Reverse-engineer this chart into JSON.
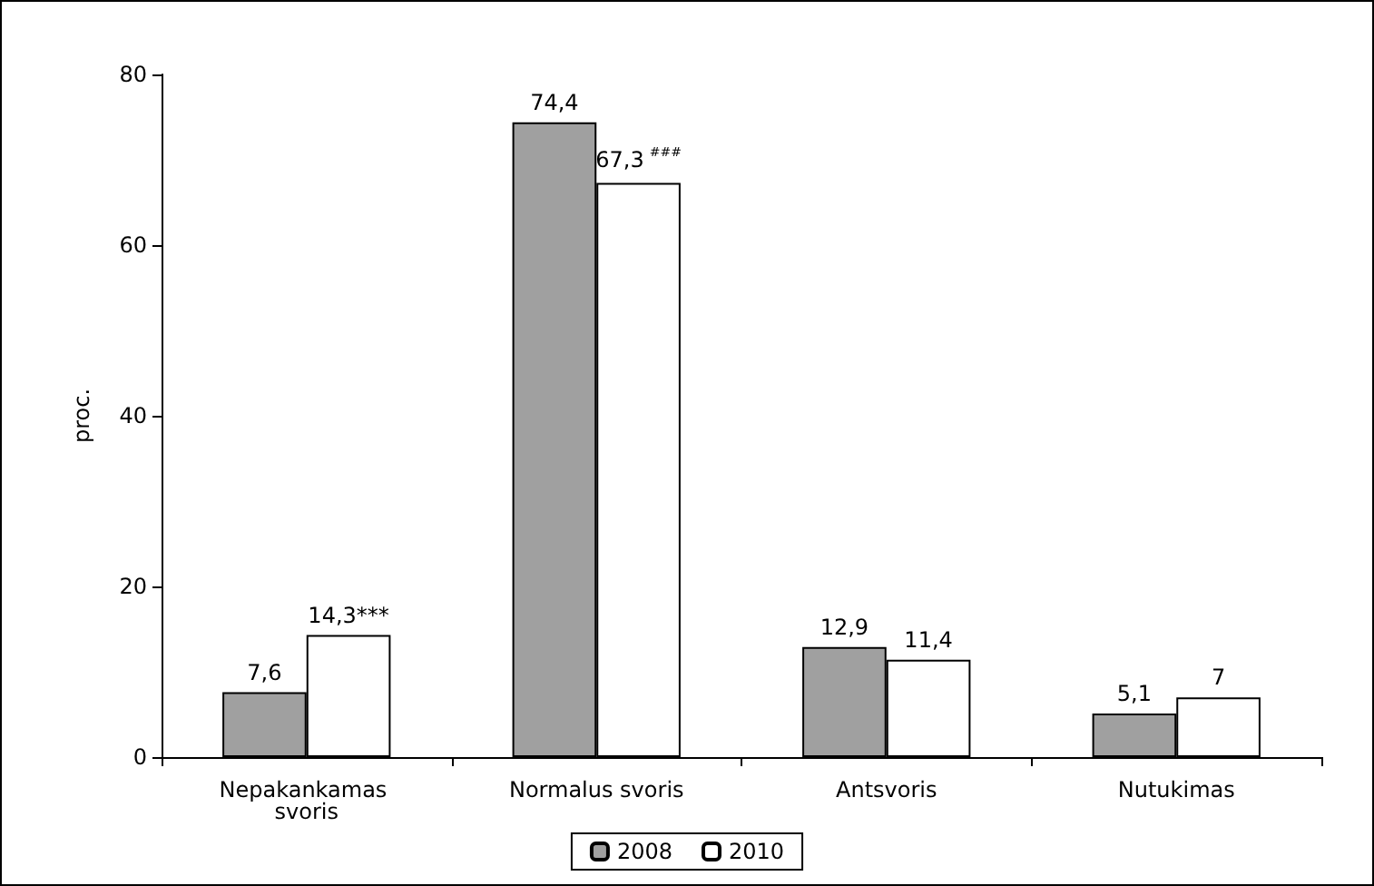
{
  "chart_data": {
    "type": "bar",
    "ylabel": "proc.",
    "categories": [
      "Nepakankamas svoris",
      "Normalus svoris",
      "Antsvoris",
      "Nutukimas"
    ],
    "series": [
      {
        "name": "2008",
        "color": "#a0a0a0",
        "values": [
          7.6,
          74.4,
          12.9,
          5.1
        ],
        "value_labels": [
          "7,6",
          "74,4",
          "12,9",
          "5,1"
        ]
      },
      {
        "name": "2010",
        "color": "#ffffff",
        "values": [
          14.3,
          67.3,
          11.4,
          7
        ],
        "value_labels": [
          "14,3***",
          "67,3$^{###}$",
          "11,4",
          "7"
        ]
      }
    ],
    "ylim": [
      0,
      80
    ],
    "yticks": [
      0,
      20,
      40,
      60,
      80
    ],
    "grid": false,
    "legend": "bottom"
  }
}
